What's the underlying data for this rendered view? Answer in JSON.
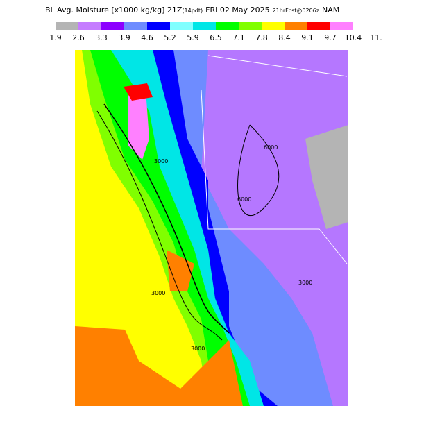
{
  "header": {
    "title": "BL Avg. Moisture [x1000 kg/kg] 21Z",
    "local_time": "(14pdt)",
    "date": "FRI 02 May 2025",
    "forecast": "21hrFcst@0206z",
    "model": "NAM"
  },
  "colorbar": {
    "labels": [
      "1.9",
      "2.6",
      "3.3",
      "3.9",
      "4.6",
      "5.2",
      "5.9",
      "6.5",
      "7.1",
      "7.8",
      "8.4",
      "9.1",
      "9.7",
      "10.4",
      "11."
    ],
    "colors": [
      "#b4b4b4",
      "#c57cff",
      "#8c00ff",
      "#6e8cff",
      "#0000ff",
      "#80ffff",
      "#00e6e6",
      "#00ff00",
      "#80ff00",
      "#ffff00",
      "#ff8000",
      "#ff0000",
      "#ff80ff"
    ]
  },
  "map": {
    "contour_labels": [
      "3000",
      "3000",
      "6000",
      "6000",
      "3000",
      "3000"
    ]
  }
}
